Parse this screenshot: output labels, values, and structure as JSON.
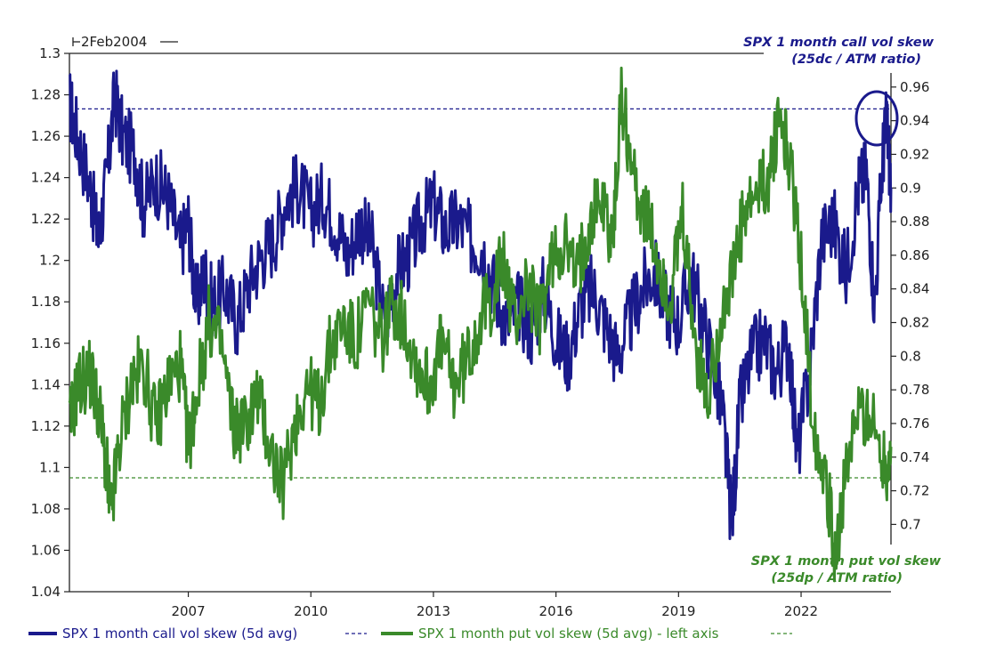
{
  "chart_data": {
    "type": "line",
    "start_label": "2Feb2004",
    "x_labels": [
      "2007",
      "2010",
      "2013",
      "2016",
      "2019",
      "2022"
    ],
    "x_range": [
      2004.09,
      2024.2
    ],
    "left_axis": {
      "range": [
        1.04,
        1.3
      ],
      "ticks": [
        "1.04",
        "1.06",
        "1.08",
        "1.1",
        "1.12",
        "1.14",
        "1.16",
        "1.18",
        "1.2",
        "1.22",
        "1.24",
        "1.26",
        "1.28",
        "1.3"
      ]
    },
    "right_axis": {
      "range": [
        0.66,
        0.98
      ],
      "ticks": [
        "0.7",
        "0.72",
        "0.74",
        "0.76",
        "0.78",
        "0.8",
        "0.82",
        "0.84",
        "0.86",
        "0.88",
        "0.9",
        "0.92",
        "0.94",
        "0.96"
      ]
    },
    "series": [
      {
        "name": "SPX 1 month call vol skew (5d avg)",
        "color": "#1a1a8c",
        "axis": "right",
        "reference_level": 0.947,
        "points": [
          [
            2004.09,
            0.95
          ],
          [
            2004.3,
            0.93
          ],
          [
            2004.6,
            0.9
          ],
          [
            2004.8,
            0.87
          ],
          [
            2005.0,
            0.905
          ],
          [
            2005.2,
            0.955
          ],
          [
            2005.4,
            0.93
          ],
          [
            2005.7,
            0.92
          ],
          [
            2005.9,
            0.89
          ],
          [
            2006.2,
            0.905
          ],
          [
            2006.5,
            0.895
          ],
          [
            2006.8,
            0.865
          ],
          [
            2007.0,
            0.88
          ],
          [
            2007.2,
            0.83
          ],
          [
            2007.4,
            0.85
          ],
          [
            2007.6,
            0.83
          ],
          [
            2007.9,
            0.84
          ],
          [
            2008.2,
            0.82
          ],
          [
            2008.5,
            0.845
          ],
          [
            2008.8,
            0.86
          ],
          [
            2009.1,
            0.87
          ],
          [
            2009.4,
            0.895
          ],
          [
            2009.7,
            0.9
          ],
          [
            2010.0,
            0.885
          ],
          [
            2010.3,
            0.895
          ],
          [
            2010.6,
            0.88
          ],
          [
            2010.9,
            0.86
          ],
          [
            2011.2,
            0.88
          ],
          [
            2011.5,
            0.865
          ],
          [
            2011.8,
            0.82
          ],
          [
            2012.1,
            0.85
          ],
          [
            2012.4,
            0.86
          ],
          [
            2012.7,
            0.88
          ],
          [
            2013.0,
            0.89
          ],
          [
            2013.3,
            0.875
          ],
          [
            2013.6,
            0.88
          ],
          [
            2013.9,
            0.87
          ],
          [
            2014.2,
            0.865
          ],
          [
            2014.5,
            0.84
          ],
          [
            2014.8,
            0.82
          ],
          [
            2015.1,
            0.83
          ],
          [
            2015.4,
            0.815
          ],
          [
            2015.7,
            0.84
          ],
          [
            2016.0,
            0.81
          ],
          [
            2016.3,
            0.8
          ],
          [
            2016.6,
            0.83
          ],
          [
            2016.9,
            0.84
          ],
          [
            2017.2,
            0.82
          ],
          [
            2017.5,
            0.8
          ],
          [
            2017.8,
            0.82
          ],
          [
            2018.1,
            0.84
          ],
          [
            2018.4,
            0.85
          ],
          [
            2018.7,
            0.83
          ],
          [
            2019.0,
            0.82
          ],
          [
            2019.3,
            0.85
          ],
          [
            2019.6,
            0.82
          ],
          [
            2019.9,
            0.79
          ],
          [
            2020.1,
            0.76
          ],
          [
            2020.3,
            0.7
          ],
          [
            2020.5,
            0.77
          ],
          [
            2020.8,
            0.8
          ],
          [
            2021.1,
            0.81
          ],
          [
            2021.4,
            0.79
          ],
          [
            2021.7,
            0.81
          ],
          [
            2021.9,
            0.74
          ],
          [
            2022.2,
            0.79
          ],
          [
            2022.5,
            0.87
          ],
          [
            2022.8,
            0.88
          ],
          [
            2023.1,
            0.85
          ],
          [
            2023.4,
            0.9
          ],
          [
            2023.6,
            0.91
          ],
          [
            2023.8,
            0.83
          ],
          [
            2024.0,
            0.92
          ],
          [
            2024.1,
            0.94
          ],
          [
            2024.2,
            0.9
          ]
        ]
      },
      {
        "name": "SPX 1 month put vol skew (5d avg) - left axis",
        "color": "#3a8a2a",
        "axis": "left",
        "reference_level": 1.095,
        "points": [
          [
            2004.09,
            1.12
          ],
          [
            2004.3,
            1.14
          ],
          [
            2004.6,
            1.145
          ],
          [
            2004.8,
            1.13
          ],
          [
            2005.0,
            1.1
          ],
          [
            2005.1,
            1.075
          ],
          [
            2005.3,
            1.11
          ],
          [
            2005.6,
            1.14
          ],
          [
            2005.9,
            1.15
          ],
          [
            2006.2,
            1.12
          ],
          [
            2006.5,
            1.14
          ],
          [
            2006.8,
            1.15
          ],
          [
            2007.0,
            1.11
          ],
          [
            2007.2,
            1.135
          ],
          [
            2007.5,
            1.17
          ],
          [
            2007.8,
            1.16
          ],
          [
            2008.1,
            1.12
          ],
          [
            2008.4,
            1.12
          ],
          [
            2008.7,
            1.135
          ],
          [
            2009.0,
            1.11
          ],
          [
            2009.3,
            1.09
          ],
          [
            2009.6,
            1.12
          ],
          [
            2009.9,
            1.14
          ],
          [
            2010.2,
            1.13
          ],
          [
            2010.5,
            1.16
          ],
          [
            2010.8,
            1.17
          ],
          [
            2011.1,
            1.16
          ],
          [
            2011.4,
            1.18
          ],
          [
            2011.7,
            1.16
          ],
          [
            2012.0,
            1.18
          ],
          [
            2012.3,
            1.17
          ],
          [
            2012.6,
            1.15
          ],
          [
            2012.9,
            1.14
          ],
          [
            2013.2,
            1.16
          ],
          [
            2013.5,
            1.14
          ],
          [
            2013.8,
            1.15
          ],
          [
            2014.1,
            1.17
          ],
          [
            2014.4,
            1.18
          ],
          [
            2014.7,
            1.2
          ],
          [
            2015.0,
            1.17
          ],
          [
            2015.3,
            1.19
          ],
          [
            2015.6,
            1.17
          ],
          [
            2015.9,
            1.2
          ],
          [
            2016.2,
            1.21
          ],
          [
            2016.5,
            1.19
          ],
          [
            2016.8,
            1.22
          ],
          [
            2017.1,
            1.23
          ],
          [
            2017.4,
            1.21
          ],
          [
            2017.6,
            1.28
          ],
          [
            2017.9,
            1.24
          ],
          [
            2018.2,
            1.22
          ],
          [
            2018.5,
            1.2
          ],
          [
            2018.8,
            1.18
          ],
          [
            2019.1,
            1.22
          ],
          [
            2019.4,
            1.16
          ],
          [
            2019.7,
            1.13
          ],
          [
            2020.0,
            1.17
          ],
          [
            2020.3,
            1.19
          ],
          [
            2020.6,
            1.22
          ],
          [
            2020.9,
            1.23
          ],
          [
            2021.2,
            1.24
          ],
          [
            2021.5,
            1.27
          ],
          [
            2021.7,
            1.25
          ],
          [
            2022.0,
            1.2
          ],
          [
            2022.3,
            1.12
          ],
          [
            2022.6,
            1.1
          ],
          [
            2022.8,
            1.06
          ],
          [
            2023.0,
            1.08
          ],
          [
            2023.3,
            1.12
          ],
          [
            2023.6,
            1.13
          ],
          [
            2023.9,
            1.11
          ],
          [
            2024.1,
            1.1
          ],
          [
            2024.2,
            1.11
          ]
        ]
      }
    ]
  },
  "annotations": {
    "call_line1": "SPX 1 month call vol skew",
    "call_line2": "(25dc / ATM ratio)",
    "put_line1": "SPX 1 month put vol skew",
    "put_line2": "(25dp / ATM ratio)"
  },
  "legend": {
    "call": "SPX 1 month call vol skew (5d avg)",
    "put": "SPX 1 month put vol skew (5d avg) - left axis"
  },
  "colors": {
    "call": "#1a1a8c",
    "put": "#3a8a2a"
  }
}
